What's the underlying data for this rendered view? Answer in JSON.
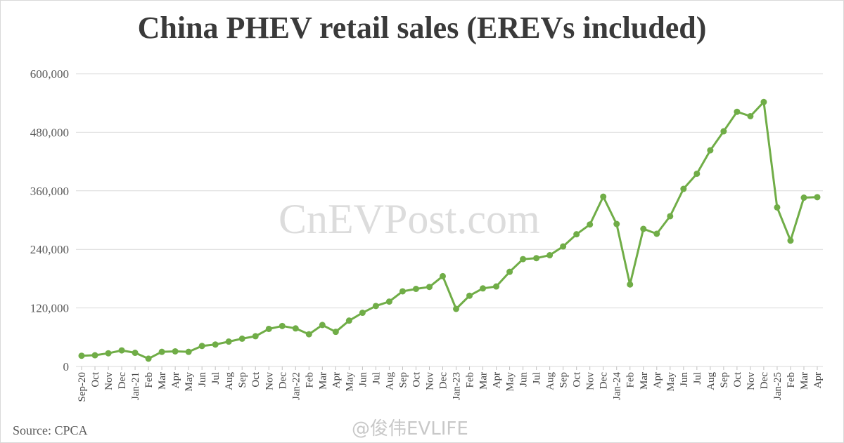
{
  "page": {
    "source_text": "Source: CPCA",
    "watermark": "CnEVPost.com",
    "social_watermark": "@俊伟EVLIFE"
  },
  "chart_data": {
    "type": "line",
    "title": "China PHEV retail sales (EREVs included)",
    "xlabel": "",
    "ylabel": "",
    "ylim": [
      0,
      600000
    ],
    "yticks": [
      0,
      120000,
      240000,
      360000,
      480000,
      600000
    ],
    "ytick_labels": [
      "0",
      "120,000",
      "240,000",
      "360,000",
      "480,000",
      "600,000"
    ],
    "grid": true,
    "legend": "none",
    "series_color": "#70ad47",
    "categories": [
      "Sep-20",
      "Oct",
      "Nov",
      "Dec",
      "Jan-21",
      "Feb",
      "Mar",
      "Apr",
      "May",
      "Jun",
      "Jul",
      "Aug",
      "Sep",
      "Oct",
      "Nov",
      "Dec",
      "Jan-22",
      "Feb",
      "Mar",
      "Apr",
      "May",
      "Jun",
      "Jul",
      "Aug",
      "Sep",
      "Oct",
      "Nov",
      "Dec",
      "Jan-23",
      "Feb",
      "Mar",
      "Apr",
      "May",
      "Jun",
      "Jul",
      "Aug",
      "Sep",
      "Oct",
      "Nov",
      "Dec",
      "Jan-24",
      "Feb",
      "Mar",
      "Apr",
      "May",
      "Jun",
      "Jul",
      "Aug",
      "Sep",
      "Oct",
      "Nov",
      "Dec",
      "Jan-25",
      "Feb",
      "Mar",
      "Apr"
    ],
    "series": [
      {
        "values": [
          22000,
          23000,
          27000,
          33000,
          28000,
          16000,
          30000,
          31000,
          30000,
          42000,
          45000,
          51000,
          57000,
          62000,
          77000,
          83000,
          78000,
          66000,
          85000,
          71000,
          94000,
          110000,
          124000,
          133000,
          154000,
          159000,
          163000,
          185000,
          118000,
          145000,
          160000,
          164000,
          194000,
          220000,
          222000,
          228000,
          246000,
          271000,
          291000,
          348000,
          292000,
          168000,
          282000,
          272000,
          308000,
          364000,
          395000,
          443000,
          482000,
          522000,
          513000,
          542000,
          326000,
          258000,
          346000,
          347000
        ]
      }
    ]
  }
}
